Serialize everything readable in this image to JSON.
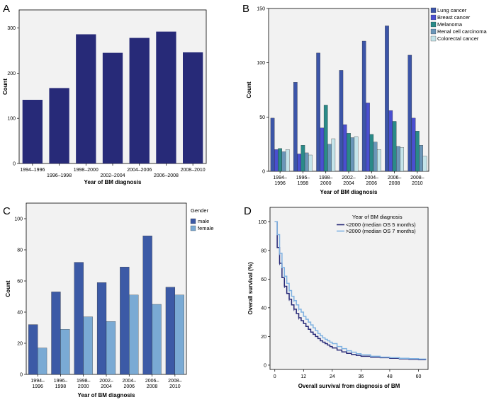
{
  "figure": {
    "panel_labels": [
      "A",
      "B",
      "C",
      "D"
    ]
  },
  "colors": {
    "dark_navy": "#272a78",
    "lung": "#3c55a8",
    "breast": "#4a4fd0",
    "melanoma": "#2a8a88",
    "renal": "#6a96b8",
    "colorectal": "#c4e4ea",
    "male": "#3c5aa6",
    "female": "#7aaad4",
    "km_before": "#272a78",
    "km_after": "#7fb2e2",
    "plot_bg": "#f2f2f2"
  },
  "chart_data": [
    {
      "panel": "A",
      "type": "bar",
      "categories": [
        "1994–1996",
        "1996–1998",
        "1998–2000",
        "2002–2004",
        "2004–2006",
        "2006–2008",
        "2008–2010"
      ],
      "values": [
        141,
        167,
        286,
        245,
        278,
        292,
        246
      ],
      "title": "",
      "xlabel": "Year of BM diagnosis",
      "ylabel": "Count",
      "ylim": [
        0,
        340
      ],
      "yticks": [
        0,
        100,
        200,
        300
      ],
      "grid": false
    },
    {
      "panel": "B",
      "type": "bar",
      "categories": [
        "1994–\n1996",
        "1996–\n1998",
        "1998–\n2000",
        "2002–\n2004",
        "2004–\n2006",
        "2006–\n2008",
        "2008–\n2010"
      ],
      "series": [
        {
          "name": "Lung cancer",
          "values": [
            49,
            82,
            109,
            93,
            120,
            134,
            107
          ]
        },
        {
          "name": "Breast cancer",
          "values": [
            20,
            16,
            40,
            43,
            63,
            56,
            49
          ]
        },
        {
          "name": "Melanoma",
          "values": [
            21,
            24,
            61,
            35,
            34,
            46,
            37
          ]
        },
        {
          "name": "Renal cell carcinoma",
          "values": [
            18,
            17,
            25,
            31,
            27,
            23,
            24
          ]
        },
        {
          "name": "Colorectal cancer",
          "values": [
            20,
            15,
            30,
            32,
            20,
            22,
            14
          ]
        }
      ],
      "title": "",
      "xlabel": "Year of BM diagnosis",
      "ylabel": "Count",
      "ylim": [
        0,
        150
      ],
      "yticks": [
        0,
        50,
        100,
        150
      ],
      "legend": "top-right"
    },
    {
      "panel": "C",
      "type": "bar",
      "categories": [
        "1994–\n1996",
        "1996–\n1998",
        "1998–\n2000",
        "2002–\n2004",
        "2004–\n2006",
        "2006–\n2008",
        "2008–\n2010"
      ],
      "legend_title": "Gender",
      "series": [
        {
          "name": "male",
          "values": [
            32,
            53,
            72,
            59,
            69,
            89,
            56
          ]
        },
        {
          "name": "female",
          "values": [
            17,
            29,
            37,
            34,
            51,
            45,
            51
          ]
        }
      ],
      "title": "",
      "xlabel": "Year of BM diagnosis",
      "ylabel": "Count",
      "ylim": [
        0,
        110
      ],
      "yticks": [
        0,
        20,
        40,
        60,
        80,
        100
      ],
      "legend": "top-right"
    },
    {
      "panel": "D",
      "type": "line",
      "title": "",
      "xlabel": "Overall survival from diagnosis of BM",
      "ylabel": "Overall survival (%)",
      "xlim": [
        -2,
        64
      ],
      "ylim": [
        -3,
        110
      ],
      "xticks": [
        0,
        12,
        24,
        36,
        48,
        60
      ],
      "yticks": [
        0,
        20,
        40,
        60,
        80,
        100
      ],
      "legend_title": "Year of BM diagnosis",
      "series": [
        {
          "name": "<2000 (median OS 5 months)",
          "x": [
            0,
            1,
            2,
            3,
            4,
            5,
            6,
            7,
            8,
            9,
            10,
            11,
            12,
            13,
            14,
            15,
            16,
            17,
            18,
            19,
            20,
            21,
            22,
            23,
            24,
            26,
            28,
            30,
            32,
            34,
            36,
            40,
            44,
            48,
            52,
            56,
            60,
            63
          ],
          "y": [
            100,
            82,
            71,
            61,
            55,
            50,
            46,
            42,
            39,
            36,
            33,
            31,
            29,
            27,
            25,
            23,
            21.5,
            20,
            18.5,
            17,
            16,
            15,
            14,
            13,
            12,
            10.5,
            9.2,
            8.2,
            7.4,
            6.8,
            6.2,
            5.6,
            5.2,
            4.8,
            4.4,
            4.1,
            3.8,
            3.6
          ]
        },
        {
          "name": ">2000 (median OS 7 months)",
          "x": [
            0,
            1,
            2,
            3,
            4,
            5,
            6,
            7,
            8,
            9,
            10,
            11,
            12,
            13,
            14,
            15,
            16,
            17,
            18,
            19,
            20,
            21,
            22,
            23,
            24,
            26,
            28,
            30,
            32,
            34,
            36,
            40,
            44,
            48,
            52,
            56,
            60,
            63
          ],
          "y": [
            100,
            91,
            78,
            68,
            62,
            57,
            52,
            48,
            45,
            42,
            39,
            37,
            34,
            32,
            30,
            28,
            26,
            24,
            22,
            20.5,
            19,
            18,
            17,
            16,
            15,
            13,
            11.5,
            10,
            9,
            8,
            7.2,
            6.2,
            5.6,
            5.2,
            4.8,
            4.5,
            4.2,
            4
          ]
        }
      ]
    }
  ]
}
